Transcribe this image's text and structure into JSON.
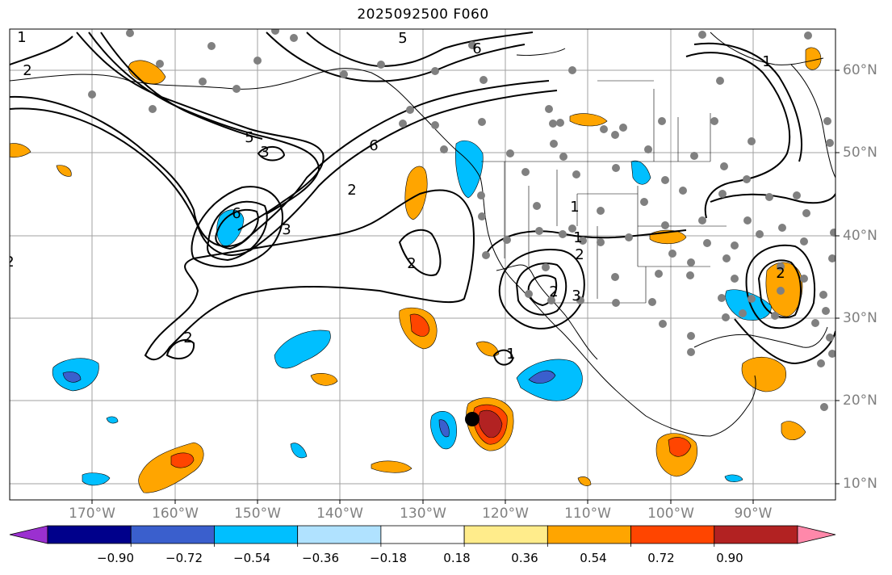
{
  "title": "2025092500 F060",
  "latitude_labels": [
    "60°N",
    "50°N",
    "40°N",
    "30°N",
    "20°N",
    "10°N"
  ],
  "longitude_labels": [
    "170°W",
    "160°W",
    "150°W",
    "140°W",
    "130°W",
    "120°W",
    "110°W",
    "100°W",
    "90°W"
  ],
  "colorbar": {
    "tick_labels": [
      "−0.90",
      "−0.72",
      "−0.54",
      "−0.36",
      "−0.18",
      "0.18",
      "0.36",
      "0.54",
      "0.72",
      "0.90"
    ],
    "colors": [
      "#9b30d0",
      "#00008b",
      "#3a5fcd",
      "#00bfff",
      "#b0e2ff",
      "#ffffff",
      "#ffec8b",
      "#ffa500",
      "#ff4500",
      "#b22222",
      "#ff88aa"
    ]
  },
  "contour_labels": [
    "1",
    "2",
    "5",
    "6",
    "5",
    "3",
    "6",
    "2",
    "6",
    "3",
    "2",
    "2",
    "1",
    "2",
    "2",
    "3",
    "1",
    "2",
    "1",
    "2",
    "1"
  ],
  "marker_colors": {
    "stations": "#808080",
    "storm_center": "#000000",
    "land_border": "#000000",
    "grid": "#a0a0a0"
  }
}
